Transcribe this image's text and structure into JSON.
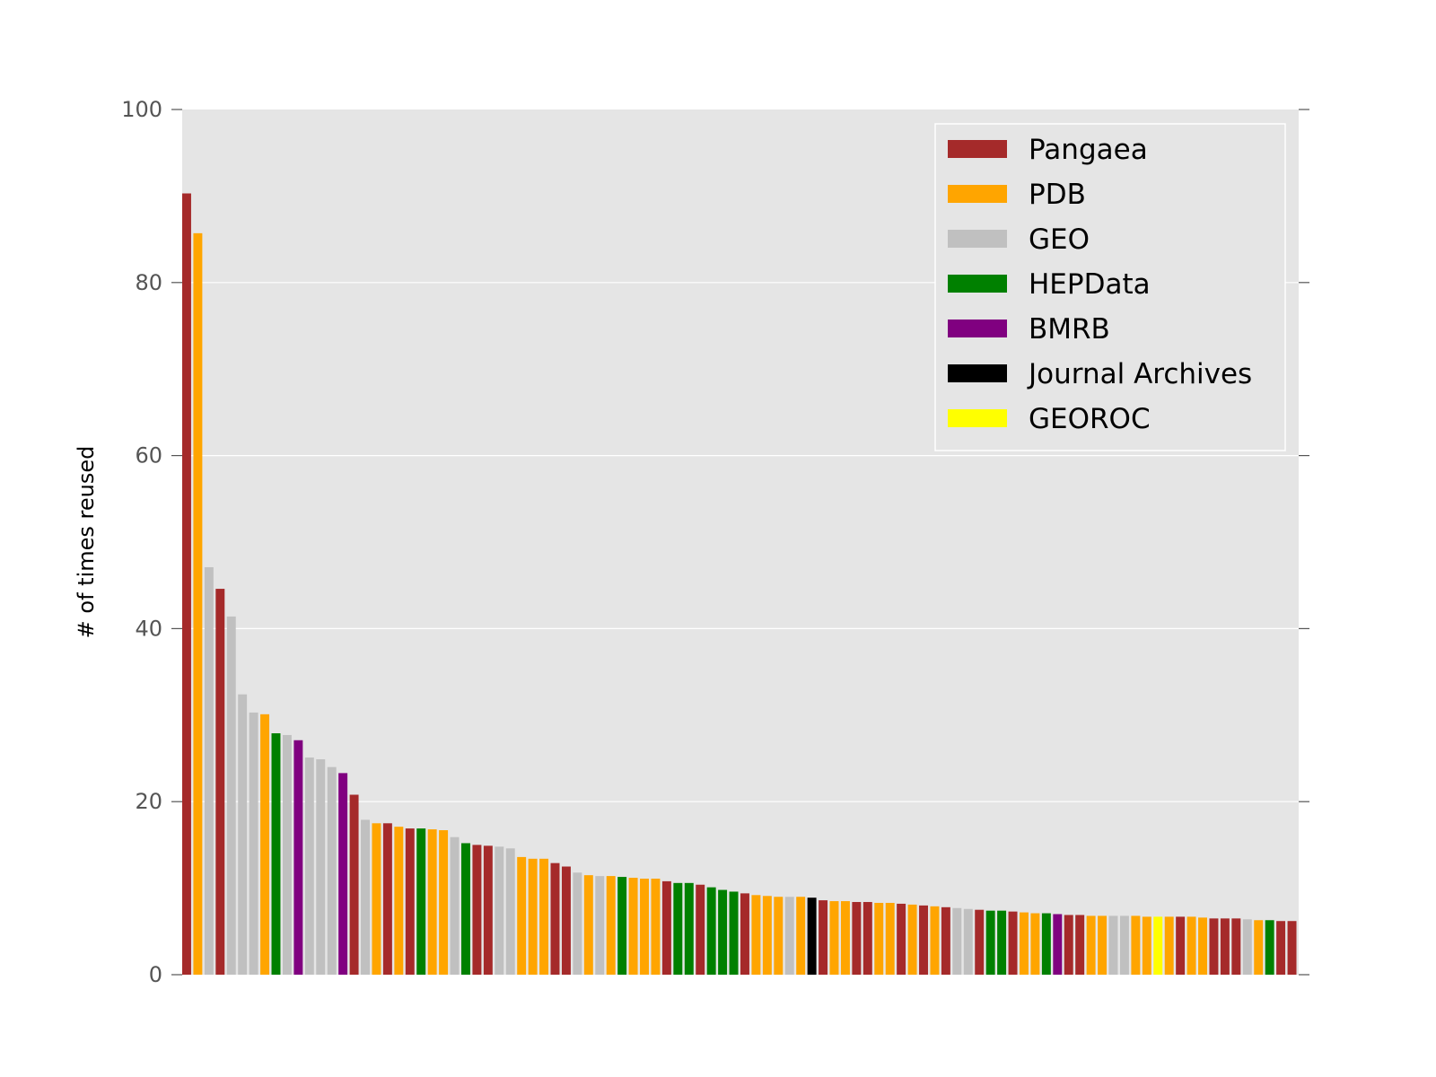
{
  "chart_data": {
    "type": "bar",
    "title": "",
    "xlabel": "",
    "ylabel": "# of times reused",
    "ylim": [
      0,
      100
    ],
    "yticks": [
      0,
      20,
      40,
      60,
      80,
      100
    ],
    "grid": true,
    "legend_position": "top-right",
    "colors": {
      "Pangaea": "#a52a2a",
      "PDB": "#ffa500",
      "GEO": "#c0c0c0",
      "HEPData": "#008000",
      "BMRB": "#800080",
      "Journal Archives": "#000000",
      "GEOROC": "#ffff00"
    },
    "legend": [
      "Pangaea",
      "PDB",
      "GEO",
      "HEPData",
      "BMRB",
      "Journal Archives",
      "GEOROC"
    ],
    "bars": [
      {
        "repo": "Pangaea",
        "value": 90.3
      },
      {
        "repo": "PDB",
        "value": 85.7
      },
      {
        "repo": "GEO",
        "value": 47.1
      },
      {
        "repo": "Pangaea",
        "value": 44.6
      },
      {
        "repo": "GEO",
        "value": 41.4
      },
      {
        "repo": "GEO",
        "value": 32.4
      },
      {
        "repo": "GEO",
        "value": 30.3
      },
      {
        "repo": "PDB",
        "value": 30.1
      },
      {
        "repo": "HEPData",
        "value": 27.9
      },
      {
        "repo": "GEO",
        "value": 27.7
      },
      {
        "repo": "BMRB",
        "value": 27.1
      },
      {
        "repo": "GEO",
        "value": 25.1
      },
      {
        "repo": "GEO",
        "value": 24.9
      },
      {
        "repo": "GEO",
        "value": 24.0
      },
      {
        "repo": "BMRB",
        "value": 23.3
      },
      {
        "repo": "Pangaea",
        "value": 20.8
      },
      {
        "repo": "GEO",
        "value": 17.9
      },
      {
        "repo": "PDB",
        "value": 17.5
      },
      {
        "repo": "Pangaea",
        "value": 17.5
      },
      {
        "repo": "PDB",
        "value": 17.1
      },
      {
        "repo": "Pangaea",
        "value": 16.9
      },
      {
        "repo": "HEPData",
        "value": 16.9
      },
      {
        "repo": "PDB",
        "value": 16.8
      },
      {
        "repo": "PDB",
        "value": 16.7
      },
      {
        "repo": "GEO",
        "value": 15.9
      },
      {
        "repo": "HEPData",
        "value": 15.2
      },
      {
        "repo": "Pangaea",
        "value": 15.0
      },
      {
        "repo": "Pangaea",
        "value": 14.9
      },
      {
        "repo": "GEO",
        "value": 14.8
      },
      {
        "repo": "GEO",
        "value": 14.6
      },
      {
        "repo": "PDB",
        "value": 13.6
      },
      {
        "repo": "PDB",
        "value": 13.4
      },
      {
        "repo": "PDB",
        "value": 13.4
      },
      {
        "repo": "Pangaea",
        "value": 12.9
      },
      {
        "repo": "Pangaea",
        "value": 12.5
      },
      {
        "repo": "GEO",
        "value": 11.8
      },
      {
        "repo": "PDB",
        "value": 11.5
      },
      {
        "repo": "GEO",
        "value": 11.4
      },
      {
        "repo": "PDB",
        "value": 11.4
      },
      {
        "repo": "HEPData",
        "value": 11.3
      },
      {
        "repo": "PDB",
        "value": 11.2
      },
      {
        "repo": "PDB",
        "value": 11.1
      },
      {
        "repo": "PDB",
        "value": 11.1
      },
      {
        "repo": "Pangaea",
        "value": 10.8
      },
      {
        "repo": "HEPData",
        "value": 10.6
      },
      {
        "repo": "HEPData",
        "value": 10.6
      },
      {
        "repo": "Pangaea",
        "value": 10.4
      },
      {
        "repo": "HEPData",
        "value": 10.1
      },
      {
        "repo": "HEPData",
        "value": 9.8
      },
      {
        "repo": "HEPData",
        "value": 9.6
      },
      {
        "repo": "Pangaea",
        "value": 9.4
      },
      {
        "repo": "PDB",
        "value": 9.2
      },
      {
        "repo": "PDB",
        "value": 9.1
      },
      {
        "repo": "PDB",
        "value": 9.0
      },
      {
        "repo": "GEO",
        "value": 9.0
      },
      {
        "repo": "PDB",
        "value": 9.0
      },
      {
        "repo": "Journal Archives",
        "value": 8.9
      },
      {
        "repo": "Pangaea",
        "value": 8.6
      },
      {
        "repo": "PDB",
        "value": 8.5
      },
      {
        "repo": "PDB",
        "value": 8.5
      },
      {
        "repo": "Pangaea",
        "value": 8.4
      },
      {
        "repo": "Pangaea",
        "value": 8.4
      },
      {
        "repo": "PDB",
        "value": 8.3
      },
      {
        "repo": "PDB",
        "value": 8.3
      },
      {
        "repo": "Pangaea",
        "value": 8.2
      },
      {
        "repo": "PDB",
        "value": 8.1
      },
      {
        "repo": "Pangaea",
        "value": 8.0
      },
      {
        "repo": "PDB",
        "value": 7.9
      },
      {
        "repo": "Pangaea",
        "value": 7.8
      },
      {
        "repo": "GEO",
        "value": 7.7
      },
      {
        "repo": "GEO",
        "value": 7.6
      },
      {
        "repo": "Pangaea",
        "value": 7.5
      },
      {
        "repo": "HEPData",
        "value": 7.4
      },
      {
        "repo": "HEPData",
        "value": 7.4
      },
      {
        "repo": "Pangaea",
        "value": 7.3
      },
      {
        "repo": "PDB",
        "value": 7.2
      },
      {
        "repo": "PDB",
        "value": 7.1
      },
      {
        "repo": "HEPData",
        "value": 7.1
      },
      {
        "repo": "BMRB",
        "value": 7.0
      },
      {
        "repo": "Pangaea",
        "value": 6.9
      },
      {
        "repo": "Pangaea",
        "value": 6.9
      },
      {
        "repo": "PDB",
        "value": 6.8
      },
      {
        "repo": "PDB",
        "value": 6.8
      },
      {
        "repo": "GEO",
        "value": 6.8
      },
      {
        "repo": "GEO",
        "value": 6.8
      },
      {
        "repo": "PDB",
        "value": 6.8
      },
      {
        "repo": "PDB",
        "value": 6.7
      },
      {
        "repo": "GEOROC",
        "value": 6.7
      },
      {
        "repo": "PDB",
        "value": 6.7
      },
      {
        "repo": "Pangaea",
        "value": 6.7
      },
      {
        "repo": "PDB",
        "value": 6.7
      },
      {
        "repo": "PDB",
        "value": 6.6
      },
      {
        "repo": "Pangaea",
        "value": 6.5
      },
      {
        "repo": "Pangaea",
        "value": 6.5
      },
      {
        "repo": "Pangaea",
        "value": 6.5
      },
      {
        "repo": "GEO",
        "value": 6.4
      },
      {
        "repo": "PDB",
        "value": 6.3
      },
      {
        "repo": "HEPData",
        "value": 6.3
      },
      {
        "repo": "Pangaea",
        "value": 6.2
      },
      {
        "repo": "Pangaea",
        "value": 6.2
      }
    ]
  }
}
